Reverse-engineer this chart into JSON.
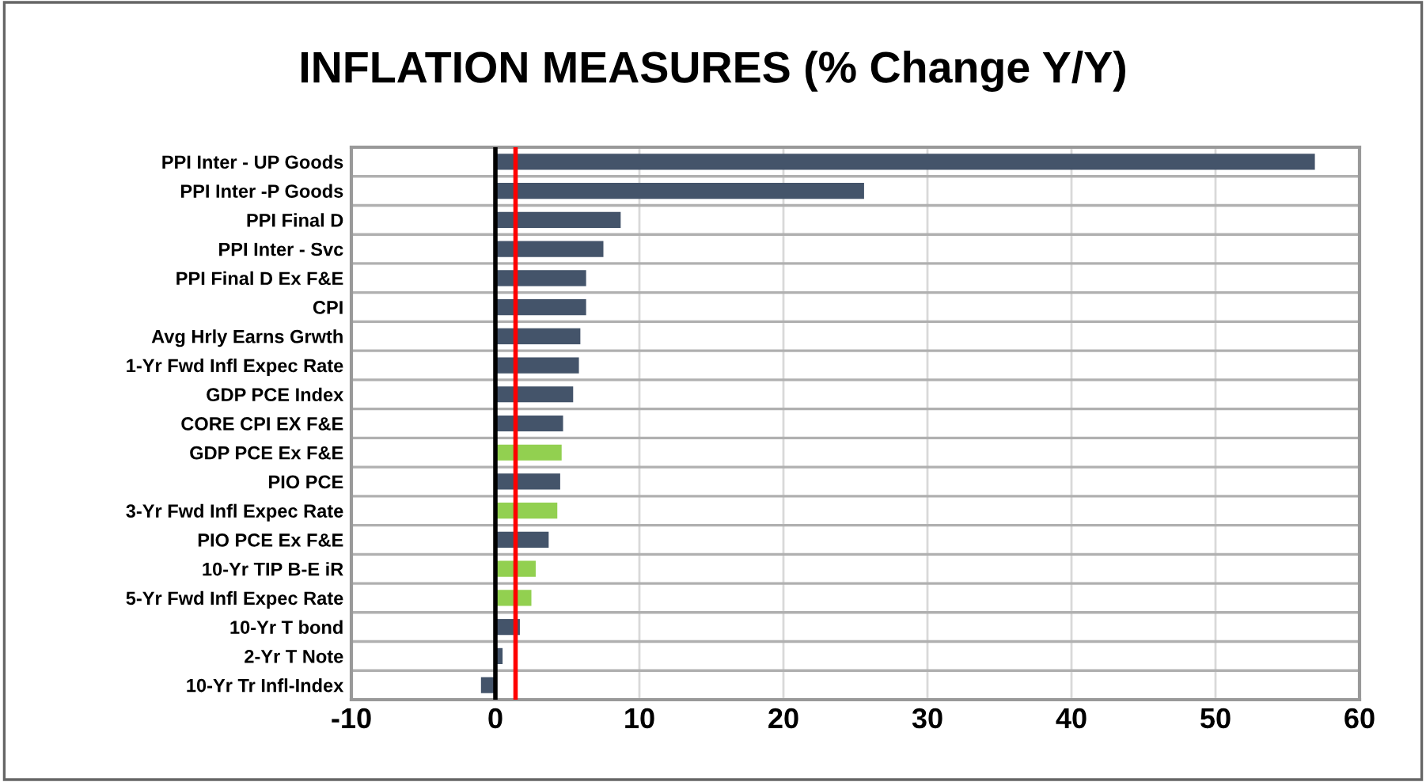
{
  "chart_data": {
    "type": "bar",
    "orientation": "horizontal",
    "title": "INFLATION MEASURES (% Change Y/Y)",
    "categories": [
      "PPI Inter - UP Goods",
      "PPI Inter -P Goods",
      "PPI Final D",
      "PPI Inter - Svc",
      "PPI Final D Ex F&E",
      "CPI",
      "Avg Hrly Earns Grwth",
      "1-Yr Fwd Infl Expec Rate",
      "GDP PCE Index",
      "CORE CPI EX F&E",
      "GDP PCE Ex F&E",
      "PIO PCE",
      "3-Yr Fwd Infl Expec Rate",
      "PIO PCE Ex F&E",
      "10-Yr TIP B-E iR",
      "5-Yr Fwd Infl Expec Rate",
      "10-Yr T bond",
      "2-Yr T Note",
      "10-Yr Tr Infl-Index"
    ],
    "values": [
      56.9,
      25.6,
      8.7,
      7.5,
      6.3,
      6.3,
      5.9,
      5.8,
      5.4,
      4.7,
      4.6,
      4.5,
      4.3,
      3.7,
      2.8,
      2.5,
      1.7,
      0.5,
      -1.0
    ],
    "colors": [
      "#44546a",
      "#44546a",
      "#44546a",
      "#44546a",
      "#44546a",
      "#44546a",
      "#44546a",
      "#44546a",
      "#44546a",
      "#44546a",
      "#92d050",
      "#44546a",
      "#92d050",
      "#44546a",
      "#92d050",
      "#92d050",
      "#44546a",
      "#44546a",
      "#44546a"
    ],
    "xlim": [
      -10,
      60
    ],
    "xticks": [
      -10,
      0,
      10,
      20,
      30,
      40,
      50,
      60
    ],
    "ref_lines": [
      {
        "axis": "x",
        "value": 0,
        "color": "#000000"
      },
      {
        "axis": "x",
        "value": 1.4,
        "color": "#ff0000"
      }
    ],
    "grid": true
  }
}
